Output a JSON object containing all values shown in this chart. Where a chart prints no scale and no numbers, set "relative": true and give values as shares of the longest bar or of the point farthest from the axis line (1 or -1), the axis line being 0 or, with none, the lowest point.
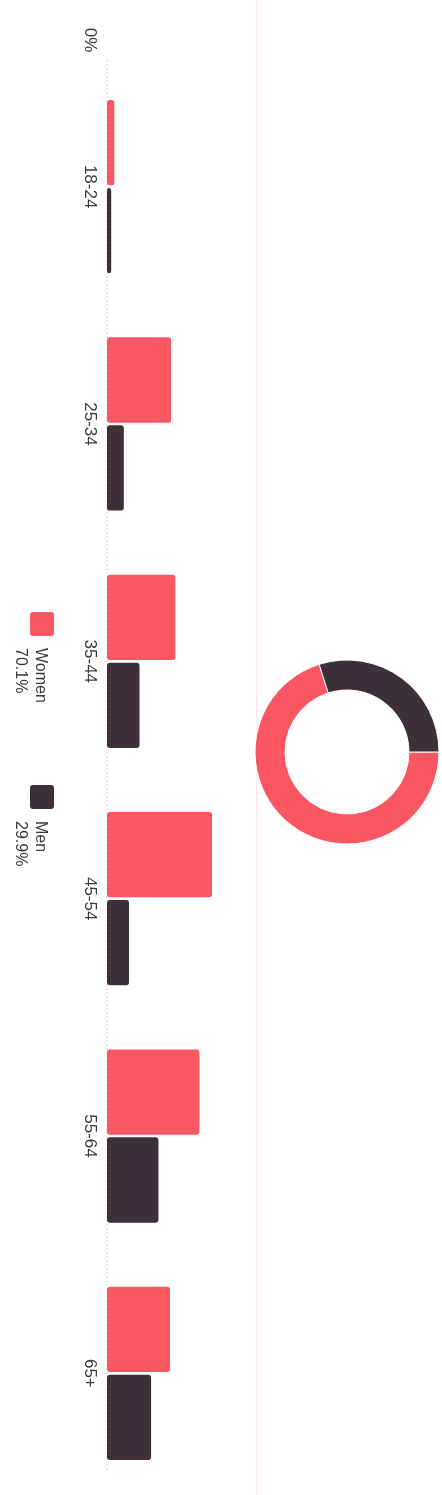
{
  "chart_data": [
    {
      "type": "donut",
      "categories": [
        "Women",
        "Men"
      ],
      "values": [
        70.1,
        29.9
      ],
      "value_labels": [
        "70.1%",
        "29.9%"
      ],
      "colors": [
        "#fa5762",
        "#3e3038"
      ],
      "legend": "left"
    },
    {
      "type": "bar",
      "orientation": "horizontal",
      "relative": true,
      "categories": [
        "18-24",
        "25-34",
        "35-44",
        "45-54",
        "55-64",
        "65+"
      ],
      "annotations": [
        "0%"
      ],
      "series": [
        {
          "color": "#fa5762",
          "values": [
            0.07,
            0.61,
            0.65,
            1,
            0.88,
            0.6
          ]
        },
        {
          "color": "#3e3038",
          "values": [
            0.04,
            0.16,
            0.31,
            0.21,
            0.49,
            0.42
          ]
        }
      ]
    }
  ]
}
